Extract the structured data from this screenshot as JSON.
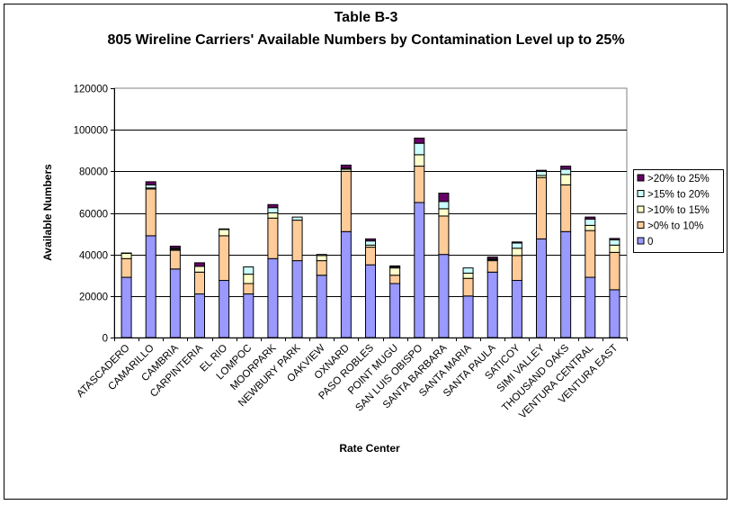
{
  "chart_data": {
    "type": "bar",
    "stacked": true,
    "title": "Table B-3",
    "subtitle": "805 Wireline Carriers' Available Numbers by Contamination Level up to 25%",
    "xlabel": "Rate Center",
    "ylabel": "Available Numbers",
    "ylim": [
      0,
      120000
    ],
    "yticks": [
      0,
      20000,
      40000,
      60000,
      80000,
      100000,
      120000
    ],
    "grid": true,
    "legend_position": "right",
    "categories": [
      "ATASCADERO",
      "CAMARILLO",
      "CAMBRIA",
      "CARPINTERIA",
      "EL RIO",
      "LOMPOC",
      "MOORPARK",
      "NEWBURY PARK",
      "OAKVIEW",
      "OXNARD",
      "PASO ROBLES",
      "POINT MUGU",
      "SAN LUIS OBISPO",
      "SANTA BARBARA",
      "SANTA MARIA",
      "SANTA PAULA",
      "SATICOY",
      "SIMI VALLEY",
      "THOUSAND OAKS",
      "VENTURA CENTRAL",
      "VENTURA EAST"
    ],
    "series": [
      {
        "name": "0",
        "color": "#9999ff",
        "values": [
          29000,
          49000,
          33000,
          21000,
          27500,
          21000,
          38000,
          37000,
          30000,
          51000,
          35000,
          26000,
          65000,
          40000,
          20000,
          31500,
          27500,
          47500,
          51000,
          29000,
          23000
        ]
      },
      {
        "name": ">0% to 10%",
        "color": "#ffcc99",
        "values": [
          9000,
          22500,
          9000,
          10500,
          21500,
          5000,
          19500,
          19500,
          7000,
          29000,
          8500,
          4000,
          17500,
          18500,
          8500,
          5500,
          12000,
          29500,
          22500,
          22500,
          18000
        ]
      },
      {
        "name": ">10% to 15%",
        "color": "#ffffcc",
        "values": [
          2500,
          500,
          500,
          2800,
          3000,
          4500,
          2500,
          0,
          2500,
          1000,
          1000,
          3500,
          5500,
          3500,
          2500,
          500,
          3500,
          1000,
          5000,
          2500,
          3500
        ]
      },
      {
        "name": ">15% to 20%",
        "color": "#ccffff",
        "values": [
          0,
          1500,
          500,
          0,
          0,
          3500,
          2500,
          1500,
          500,
          500,
          2000,
          500,
          5500,
          3500,
          2500,
          500,
          2500,
          2000,
          2500,
          3000,
          2500
        ]
      },
      {
        "name": ">20% to 25%",
        "color": "#660066",
        "values": [
          200,
          1500,
          1000,
          1700,
          300,
          0,
          1500,
          0,
          0,
          1500,
          1000,
          500,
          2500,
          4000,
          0,
          800,
          500,
          500,
          1500,
          1000,
          700
        ]
      }
    ]
  }
}
